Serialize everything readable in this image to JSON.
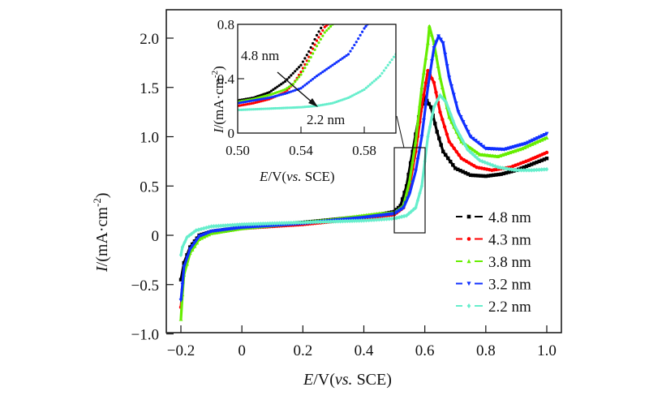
{
  "chart_data": {
    "type": "scatter",
    "title": "",
    "xlabel": "E/V(vs. SCE)",
    "xlabel_parts": {
      "var": "E",
      "unit": "/V(",
      "vs": "vs.",
      "ref": " SCE)"
    },
    "ylabel": "I/(mA·cm⁻²)",
    "ylabel_parts": {
      "var": "I",
      "unit": "/(mA·cm",
      "exp": "-2",
      "close": ")"
    },
    "xlim": [
      -0.22,
      1.03
    ],
    "ylim": [
      -1.0,
      2.2
    ],
    "x_ticks": [
      -0.2,
      0,
      0.2,
      0.4,
      0.6,
      0.8,
      1.0
    ],
    "x_tick_labels": [
      "−0.2",
      "0",
      "0.2",
      "0.4",
      "0.6",
      "0.8",
      "1.0"
    ],
    "y_ticks": [
      -1.0,
      -0.5,
      0,
      0.5,
      1.0,
      1.5,
      2.0
    ],
    "y_tick_labels": [
      "−1.0",
      "−0.5",
      "0",
      "0.5",
      "1.0",
      "1.5",
      "2.0"
    ],
    "grid": false,
    "legend_position": "bottom-right",
    "series": [
      {
        "name": "4.8 nm",
        "color": "#000000",
        "marker": "square",
        "points": [
          [
            -0.2,
            -0.45
          ],
          [
            -0.19,
            -0.28
          ],
          [
            -0.17,
            -0.12
          ],
          [
            -0.14,
            0.0
          ],
          [
            -0.1,
            0.04
          ],
          [
            0.0,
            0.08
          ],
          [
            0.1,
            0.1
          ],
          [
            0.2,
            0.13
          ],
          [
            0.3,
            0.16
          ],
          [
            0.4,
            0.19
          ],
          [
            0.45,
            0.21
          ],
          [
            0.5,
            0.24
          ],
          [
            0.52,
            0.3
          ],
          [
            0.54,
            0.5
          ],
          [
            0.56,
            0.85
          ],
          [
            0.58,
            1.2
          ],
          [
            0.6,
            1.4
          ],
          [
            0.62,
            1.3
          ],
          [
            0.64,
            1.05
          ],
          [
            0.66,
            0.85
          ],
          [
            0.7,
            0.68
          ],
          [
            0.75,
            0.61
          ],
          [
            0.8,
            0.6
          ],
          [
            0.85,
            0.62
          ],
          [
            0.9,
            0.66
          ],
          [
            0.95,
            0.72
          ],
          [
            1.0,
            0.78
          ]
        ]
      },
      {
        "name": "4.3 nm",
        "color": "#ff0000",
        "marker": "circle",
        "points": [
          [
            -0.2,
            -0.73
          ],
          [
            -0.195,
            -0.55
          ],
          [
            -0.19,
            -0.38
          ],
          [
            -0.17,
            -0.15
          ],
          [
            -0.14,
            -0.02
          ],
          [
            -0.1,
            0.03
          ],
          [
            0.0,
            0.07
          ],
          [
            0.1,
            0.09
          ],
          [
            0.2,
            0.11
          ],
          [
            0.3,
            0.14
          ],
          [
            0.4,
            0.17
          ],
          [
            0.45,
            0.19
          ],
          [
            0.5,
            0.21
          ],
          [
            0.53,
            0.28
          ],
          [
            0.55,
            0.5
          ],
          [
            0.57,
            0.85
          ],
          [
            0.59,
            1.3
          ],
          [
            0.61,
            1.67
          ],
          [
            0.63,
            1.55
          ],
          [
            0.65,
            1.25
          ],
          [
            0.68,
            0.95
          ],
          [
            0.72,
            0.78
          ],
          [
            0.77,
            0.69
          ],
          [
            0.82,
            0.66
          ],
          [
            0.88,
            0.69
          ],
          [
            0.94,
            0.76
          ],
          [
            1.0,
            0.84
          ]
        ]
      },
      {
        "name": "3.8 nm",
        "color": "#66ee00",
        "marker": "triangle-up",
        "points": [
          [
            -0.2,
            -0.85
          ],
          [
            -0.195,
            -0.6
          ],
          [
            -0.19,
            -0.4
          ],
          [
            -0.17,
            -0.18
          ],
          [
            -0.14,
            -0.04
          ],
          [
            -0.1,
            0.02
          ],
          [
            0.0,
            0.07
          ],
          [
            0.1,
            0.1
          ],
          [
            0.2,
            0.13
          ],
          [
            0.3,
            0.16
          ],
          [
            0.4,
            0.2
          ],
          [
            0.45,
            0.22
          ],
          [
            0.5,
            0.23
          ],
          [
            0.53,
            0.3
          ],
          [
            0.55,
            0.55
          ],
          [
            0.57,
            0.95
          ],
          [
            0.59,
            1.5
          ],
          [
            0.61,
            1.95
          ],
          [
            0.615,
            2.12
          ],
          [
            0.63,
            1.95
          ],
          [
            0.65,
            1.6
          ],
          [
            0.68,
            1.2
          ],
          [
            0.72,
            0.95
          ],
          [
            0.78,
            0.82
          ],
          [
            0.84,
            0.8
          ],
          [
            0.92,
            0.88
          ],
          [
            1.0,
            0.99
          ]
        ]
      },
      {
        "name": "3.2 nm",
        "color": "#1030ff",
        "marker": "triangle-down",
        "points": [
          [
            -0.2,
            -0.66
          ],
          [
            -0.195,
            -0.5
          ],
          [
            -0.19,
            -0.32
          ],
          [
            -0.17,
            -0.14
          ],
          [
            -0.14,
            -0.01
          ],
          [
            -0.1,
            0.04
          ],
          [
            0.0,
            0.08
          ],
          [
            0.1,
            0.1
          ],
          [
            0.2,
            0.12
          ],
          [
            0.3,
            0.15
          ],
          [
            0.4,
            0.18
          ],
          [
            0.45,
            0.2
          ],
          [
            0.5,
            0.22
          ],
          [
            0.53,
            0.28
          ],
          [
            0.55,
            0.42
          ],
          [
            0.57,
            0.65
          ],
          [
            0.59,
            1.0
          ],
          [
            0.61,
            1.5
          ],
          [
            0.63,
            1.9
          ],
          [
            0.645,
            2.02
          ],
          [
            0.66,
            1.95
          ],
          [
            0.68,
            1.6
          ],
          [
            0.71,
            1.25
          ],
          [
            0.75,
            1.0
          ],
          [
            0.8,
            0.88
          ],
          [
            0.86,
            0.87
          ],
          [
            0.93,
            0.93
          ],
          [
            1.0,
            1.03
          ]
        ]
      },
      {
        "name": "2.2 nm",
        "color": "#66eecc",
        "marker": "diamond",
        "points": [
          [
            -0.2,
            -0.2
          ],
          [
            -0.195,
            -0.12
          ],
          [
            -0.18,
            -0.02
          ],
          [
            -0.15,
            0.05
          ],
          [
            -0.1,
            0.09
          ],
          [
            0.0,
            0.11
          ],
          [
            0.1,
            0.12
          ],
          [
            0.2,
            0.13
          ],
          [
            0.3,
            0.14
          ],
          [
            0.4,
            0.15
          ],
          [
            0.45,
            0.16
          ],
          [
            0.5,
            0.17
          ],
          [
            0.54,
            0.2
          ],
          [
            0.57,
            0.28
          ],
          [
            0.59,
            0.5
          ],
          [
            0.6,
            0.75
          ],
          [
            0.61,
            1.0
          ],
          [
            0.63,
            1.3
          ],
          [
            0.65,
            1.42
          ],
          [
            0.67,
            1.35
          ],
          [
            0.7,
            1.1
          ],
          [
            0.74,
            0.87
          ],
          [
            0.78,
            0.76
          ],
          [
            0.84,
            0.69
          ],
          [
            0.9,
            0.66
          ],
          [
            0.95,
            0.66
          ],
          [
            1.0,
            0.67
          ]
        ]
      }
    ],
    "inset": {
      "xlabel": "E/V(vs. SCE)",
      "ylabel": "I/(mA·cm⁻²)",
      "xlim": [
        0.5,
        0.6
      ],
      "ylim": [
        0,
        0.8
      ],
      "x_ticks": [
        0.5,
        0.54,
        0.58
      ],
      "x_tick_labels": [
        "0.50",
        "0.54",
        "0.58"
      ],
      "y_ticks": [
        0,
        0.4,
        0.8
      ],
      "y_tick_labels": [
        "0",
        "0.4",
        "0.8"
      ],
      "annotations": [
        {
          "text": "4.8 nm",
          "position": "upper-left"
        },
        {
          "text": "2.2 nm",
          "position": "lower-middle"
        }
      ],
      "arrow": {
        "from": "4.8 nm",
        "to": "2.2 nm"
      },
      "series": [
        {
          "name": "4.8 nm",
          "color": "#000000",
          "points": [
            [
              0.5,
              0.24
            ],
            [
              0.51,
              0.26
            ],
            [
              0.52,
              0.3
            ],
            [
              0.53,
              0.38
            ],
            [
              0.54,
              0.5
            ],
            [
              0.545,
              0.6
            ],
            [
              0.55,
              0.72
            ],
            [
              0.554,
              0.8
            ]
          ]
        },
        {
          "name": "4.3 nm",
          "color": "#ff0000",
          "points": [
            [
              0.5,
              0.2
            ],
            [
              0.51,
              0.22
            ],
            [
              0.52,
              0.25
            ],
            [
              0.53,
              0.3
            ],
            [
              0.535,
              0.36
            ],
            [
              0.54,
              0.45
            ],
            [
              0.545,
              0.56
            ],
            [
              0.55,
              0.68
            ],
            [
              0.555,
              0.78
            ],
            [
              0.557,
              0.8
            ]
          ]
        },
        {
          "name": "3.8 nm",
          "color": "#66ee00",
          "points": [
            [
              0.5,
              0.23
            ],
            [
              0.51,
              0.25
            ],
            [
              0.52,
              0.28
            ],
            [
              0.53,
              0.32
            ],
            [
              0.535,
              0.36
            ],
            [
              0.54,
              0.43
            ],
            [
              0.545,
              0.53
            ],
            [
              0.55,
              0.64
            ],
            [
              0.555,
              0.74
            ],
            [
              0.56,
              0.8
            ]
          ]
        },
        {
          "name": "3.2 nm",
          "color": "#1030ff",
          "points": [
            [
              0.5,
              0.22
            ],
            [
              0.51,
              0.24
            ],
            [
              0.52,
              0.26
            ],
            [
              0.53,
              0.29
            ],
            [
              0.54,
              0.33
            ],
            [
              0.55,
              0.42
            ],
            [
              0.56,
              0.5
            ],
            [
              0.57,
              0.58
            ],
            [
              0.575,
              0.67
            ],
            [
              0.58,
              0.77
            ],
            [
              0.582,
              0.8
            ]
          ]
        },
        {
          "name": "2.2 nm",
          "color": "#66eecc",
          "points": [
            [
              0.5,
              0.17
            ],
            [
              0.51,
              0.175
            ],
            [
              0.52,
              0.18
            ],
            [
              0.53,
              0.185
            ],
            [
              0.54,
              0.19
            ],
            [
              0.55,
              0.2
            ],
            [
              0.56,
              0.22
            ],
            [
              0.57,
              0.26
            ],
            [
              0.58,
              0.32
            ],
            [
              0.59,
              0.42
            ],
            [
              0.595,
              0.5
            ],
            [
              0.6,
              0.58
            ]
          ]
        }
      ]
    }
  }
}
